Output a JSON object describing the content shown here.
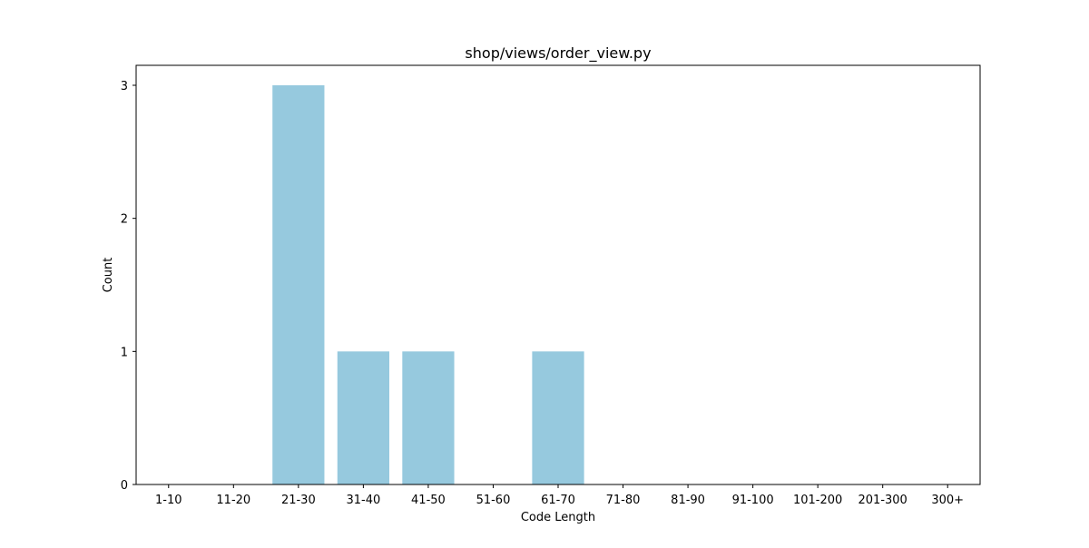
{
  "chart_data": {
    "type": "bar",
    "title": "shop/views/order_view.py",
    "xlabel": "Code Length",
    "ylabel": "Count",
    "categories": [
      "1-10",
      "11-20",
      "21-30",
      "31-40",
      "41-50",
      "51-60",
      "61-70",
      "71-80",
      "81-90",
      "91-100",
      "101-200",
      "201-300",
      "300+"
    ],
    "values": [
      0,
      0,
      3,
      1,
      1,
      0,
      1,
      0,
      0,
      0,
      0,
      0,
      0
    ],
    "ylim": [
      0,
      3.15
    ],
    "yticks": [
      0,
      1,
      2,
      3
    ],
    "bar_color": "#96c9de",
    "grid": false,
    "legend": "none"
  }
}
